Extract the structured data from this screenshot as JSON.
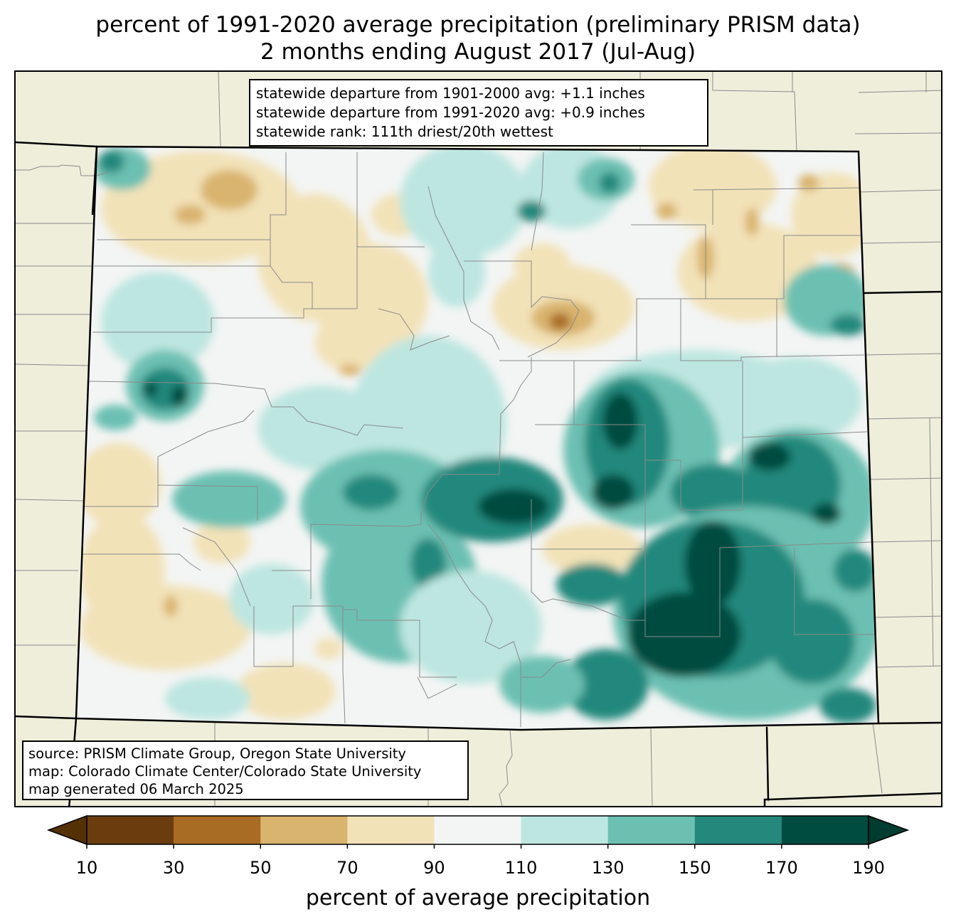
{
  "title": {
    "line1": "percent of 1991-2020 average precipitation (preliminary PRISM data)",
    "line2": "2 months ending August 2017 (Jul-Aug)"
  },
  "stats": {
    "line1": "statewide departure from 1901-2000 avg: +1.1 inches",
    "line2": "statewide departure from 1991-2020 avg: +0.9 inches",
    "line3": "statewide rank: 111th driest/20th wettest"
  },
  "source": {
    "line1": "source: PRISM Climate Group, Oregon State University",
    "line2": "map: Colorado Climate Center/Colorado State University",
    "line3": "map generated 06 March 2025"
  },
  "colorbar": {
    "label": "percent of average precipitation",
    "ticks": [
      "10",
      "30",
      "50",
      "70",
      "90",
      "110",
      "130",
      "150",
      "170",
      "190"
    ],
    "colors": [
      "#6b3d0e",
      "#a96c24",
      "#d9b46e",
      "#f2e2b8",
      "#f3f5f4",
      "#bde6e0",
      "#6cc0b2",
      "#24887d",
      "#004c41"
    ],
    "under_color": "#543005",
    "over_color": "#003c30"
  },
  "map_colors": {
    "background": "#efeedb",
    "state_border": "#000000",
    "county_border": "#8a8a8a"
  }
}
